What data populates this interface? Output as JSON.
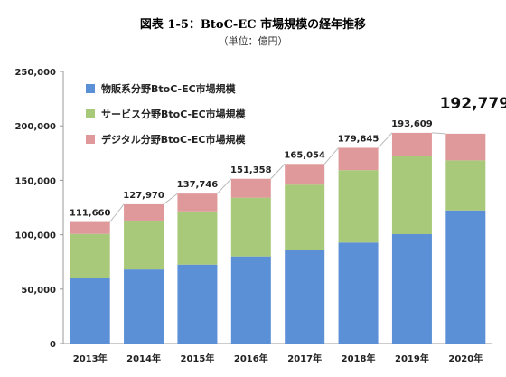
{
  "figure": {
    "title": "図表 1-5：BtoC-EC 市場規模の経年推移",
    "unit": "（単位：億円）"
  },
  "chart_data": {
    "type": "bar",
    "stacked": true,
    "categories": [
      "2013年",
      "2014年",
      "2015年",
      "2016年",
      "2017年",
      "2018年",
      "2019年",
      "2020年"
    ],
    "series": [
      {
        "name": "物販系分野BtoC-EC市場規模",
        "color": "#5b8fd6",
        "values": [
          59900,
          68000,
          72500,
          80000,
          86000,
          92800,
          100500,
          122300
        ]
      },
      {
        "name": "サービス分野BtoC-EC市場規模",
        "color": "#a9c97a",
        "values": [
          40800,
          45000,
          49000,
          54000,
          60000,
          66500,
          71600,
          46000
        ]
      },
      {
        "name": "デジタル分野BtoC-EC市場規模",
        "color": "#e0999b",
        "values": [
          10960,
          14970,
          16246,
          17358,
          19054,
          20545,
          21509,
          24479
        ]
      }
    ],
    "totals": [
      "111,660",
      "127,970",
      "137,746",
      "151,358",
      "165,054",
      "179,845",
      "193,609",
      "192,779"
    ],
    "totals_values": [
      111660,
      127970,
      137746,
      151358,
      165054,
      179845,
      193609,
      192779
    ],
    "ylim": [
      0,
      250000
    ],
    "yticks": [
      0,
      50000,
      100000,
      150000,
      200000,
      250000
    ],
    "ytick_labels": [
      "0",
      "50,000",
      "100,000",
      "150,000",
      "200,000",
      "250,000"
    ],
    "grid": false,
    "legend_position": "top-left",
    "highlight_total_last": true
  }
}
